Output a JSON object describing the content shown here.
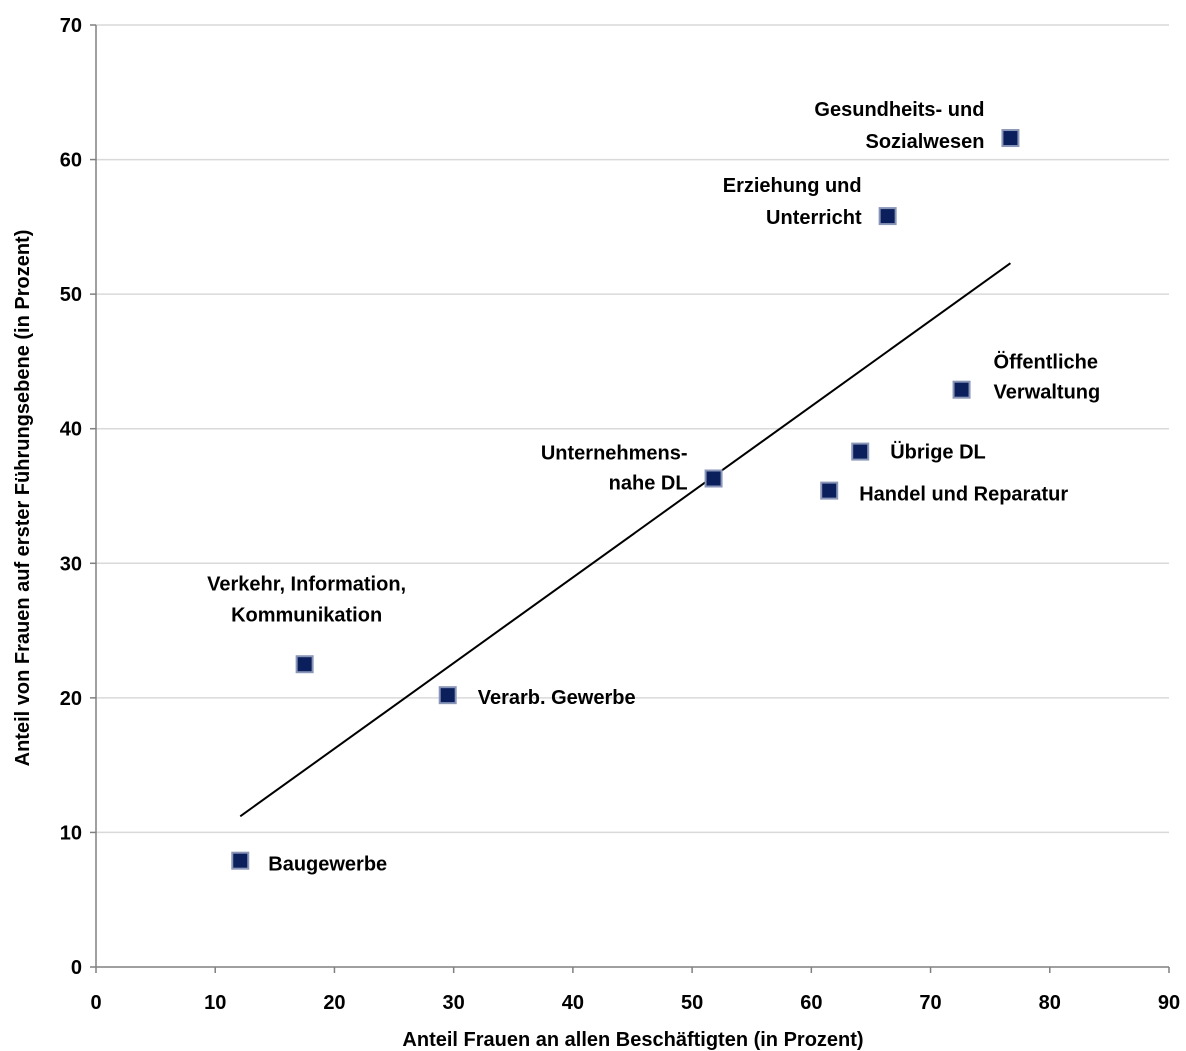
{
  "chart_data": {
    "type": "scatter",
    "title": "",
    "xlabel": "Anteil Frauen an allen Beschäftigten (in Prozent)",
    "ylabel": "Anteil von Frauen auf erster Führungsebene  (in Prozent)",
    "xlim": [
      0,
      90
    ],
    "ylim": [
      0,
      70
    ],
    "xticks": [
      0,
      10,
      20,
      30,
      40,
      50,
      60,
      70,
      80,
      90
    ],
    "yticks": [
      0,
      10,
      20,
      30,
      40,
      50,
      60,
      70
    ],
    "grid": "horizontal",
    "colors": {
      "marker": "#0a1f5c",
      "grid": "#d9d9d9",
      "trend": "#000000"
    },
    "points": [
      {
        "label": [
          "Gesundheits- und",
          "Sozialwesen"
        ],
        "x": 76.7,
        "y": 61.6
      },
      {
        "label": [
          "Erziehung und",
          "Unterricht"
        ],
        "x": 66.4,
        "y": 55.8
      },
      {
        "label": [
          "Öffentliche",
          "Verwaltung"
        ],
        "x": 72.6,
        "y": 42.9
      },
      {
        "label": [
          "Übrige DL"
        ],
        "x": 64.1,
        "y": 38.3
      },
      {
        "label": [
          "Unternehmens-",
          "nahe DL"
        ],
        "x": 51.8,
        "y": 36.3
      },
      {
        "label": [
          "Handel und Reparatur"
        ],
        "x": 61.5,
        "y": 35.4
      },
      {
        "label": [
          "Verkehr, Information,",
          "Kommunikation"
        ],
        "x": 17.5,
        "y": 22.5
      },
      {
        "label": [
          "Verarb. Gewerbe"
        ],
        "x": 29.5,
        "y": 20.2
      },
      {
        "label": [
          "Baugewerbe"
        ],
        "x": 12.1,
        "y": 7.9
      }
    ],
    "trendline": {
      "x": [
        12.1,
        76.7
      ],
      "y": [
        11.2,
        52.3
      ]
    }
  }
}
